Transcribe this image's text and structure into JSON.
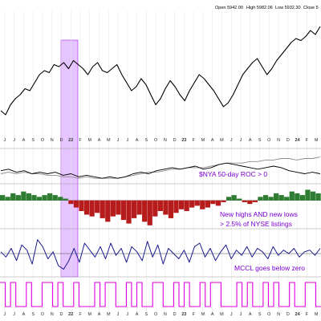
{
  "header": {
    "ohlc": [
      {
        "label": "Open",
        "value": "5942.00"
      },
      {
        "label": "High",
        "value": "5982.06"
      },
      {
        "label": "Low",
        "value": "5932.30"
      },
      {
        "label": "Close",
        "value": "5"
      }
    ]
  },
  "colors": {
    "price_line": "#000000",
    "roc_line_1": "#000000",
    "roc_line_2": "#8c8c8c",
    "highlight_band": "#c77dff",
    "annotation_text": "#7b00d4",
    "mccl_line": "#1a1a8c",
    "signal_line": "#e000e0",
    "nhnl_positive": "#2e7d32",
    "nhnl_negative": "#b71c1c"
  },
  "chart_data": [
    {
      "type": "line",
      "panel": "price",
      "x_axis": {
        "tick_labels": [
          "J",
          "J",
          "A",
          "S",
          "O",
          "N",
          "D",
          "22",
          "F",
          "M",
          "A",
          "M",
          "J",
          "J",
          "A",
          "S",
          "O",
          "N",
          "D",
          "23",
          "F",
          "M",
          "A",
          "M",
          "J",
          "J",
          "A",
          "S",
          "O",
          "N",
          "D",
          "24",
          "F",
          "M"
        ]
      },
      "series": [
        {
          "values": [
            52,
            50,
            55,
            58,
            60,
            63,
            62,
            66,
            70,
            72,
            71,
            75,
            74,
            76,
            73,
            77,
            75,
            73,
            70,
            74,
            76,
            72,
            71,
            73,
            75,
            70,
            66,
            62,
            64,
            68,
            65,
            60,
            55,
            58,
            63,
            67,
            64,
            60,
            57,
            62,
            66,
            70,
            68,
            65,
            62,
            58,
            54,
            56,
            60,
            65,
            70,
            73,
            76,
            78,
            74,
            70,
            73,
            77,
            80,
            83,
            86,
            88,
            87,
            89,
            92,
            90,
            94
          ]
        }
      ],
      "ylim": [
        40,
        100
      ],
      "grid": true
    },
    {
      "type": "line",
      "panel": "roc",
      "series": [
        {
          "values": [
            7,
            8,
            6,
            7,
            5,
            6,
            5,
            6,
            4,
            5,
            3,
            4,
            3,
            2,
            3,
            2,
            3,
            5,
            6,
            5,
            7,
            8,
            9,
            8,
            9,
            10,
            8,
            9,
            11,
            12,
            11,
            10,
            9,
            8,
            9,
            10,
            9,
            7,
            6,
            5,
            6,
            5
          ]
        },
        {
          "values": [
            5,
            6,
            5,
            6,
            5,
            5,
            4,
            4,
            3,
            3,
            2,
            3,
            2,
            2,
            2,
            2,
            3,
            4,
            5,
            6,
            6,
            7,
            8,
            8,
            9,
            9,
            9,
            10,
            11,
            12,
            12,
            12,
            13,
            13,
            14,
            14,
            15,
            15,
            14,
            15,
            15,
            16
          ]
        }
      ],
      "annotation": "$NYA 50-day ROC > 0",
      "ylim": [
        0,
        20
      ]
    },
    {
      "type": "bar",
      "panel": "nhnl",
      "values": [
        3,
        2,
        4,
        3,
        5,
        4,
        3,
        2,
        3,
        4,
        3,
        2,
        1,
        -2,
        -4,
        -6,
        -8,
        -9,
        -7,
        -10,
        -12,
        -9,
        -8,
        -11,
        -13,
        -10,
        -8,
        -12,
        -14,
        -9,
        -6,
        -8,
        -10,
        -7,
        -5,
        -6,
        -4,
        -3,
        -5,
        -4,
        -2,
        -3,
        -1,
        2,
        3,
        1,
        -1,
        -2,
        -1,
        2,
        3,
        2,
        4,
        3,
        2,
        5,
        4,
        3,
        6,
        5,
        4
      ],
      "annotation": [
        "New highs AND new lows",
        "> 2.5% of NYSE listings"
      ],
      "ylim": [
        -15,
        8
      ]
    },
    {
      "type": "line",
      "panel": "mccl",
      "series": [
        {
          "values": [
            10,
            -20,
            30,
            -40,
            50,
            20,
            -60,
            80,
            40,
            -30,
            10,
            -70,
            -90,
            -40,
            30,
            -50,
            60,
            20,
            -20,
            40,
            -30,
            60,
            -10,
            30,
            -50,
            40,
            10,
            -40,
            70,
            -20,
            50,
            -60,
            30,
            0,
            -30,
            20,
            -50,
            40,
            60,
            -20,
            30,
            -40,
            10,
            50,
            -30,
            20,
            -10,
            40,
            -20,
            30,
            10,
            -30,
            40,
            -10,
            20,
            0,
            30,
            -20,
            10,
            20,
            -10,
            30
          ]
        }
      ],
      "annotation": "MCCL goes below zero",
      "ylim": [
        -120,
        120
      ]
    },
    {
      "type": "line",
      "panel": "signal",
      "series": [
        {
          "values": [
            1,
            0,
            1,
            0,
            0,
            1,
            0,
            0,
            1,
            1,
            0,
            1,
            0,
            0,
            1,
            0,
            0,
            0,
            1,
            0,
            1,
            1,
            0,
            0,
            1,
            0,
            1,
            0,
            0,
            1,
            1,
            0,
            0,
            1,
            0,
            1,
            0,
            0,
            1,
            0,
            1,
            1,
            0,
            0,
            0,
            1,
            0,
            1,
            0,
            0,
            1,
            0,
            1,
            0,
            0,
            1,
            0,
            0,
            1,
            1,
            0
          ]
        }
      ],
      "ylim": [
        0,
        1
      ]
    }
  ]
}
